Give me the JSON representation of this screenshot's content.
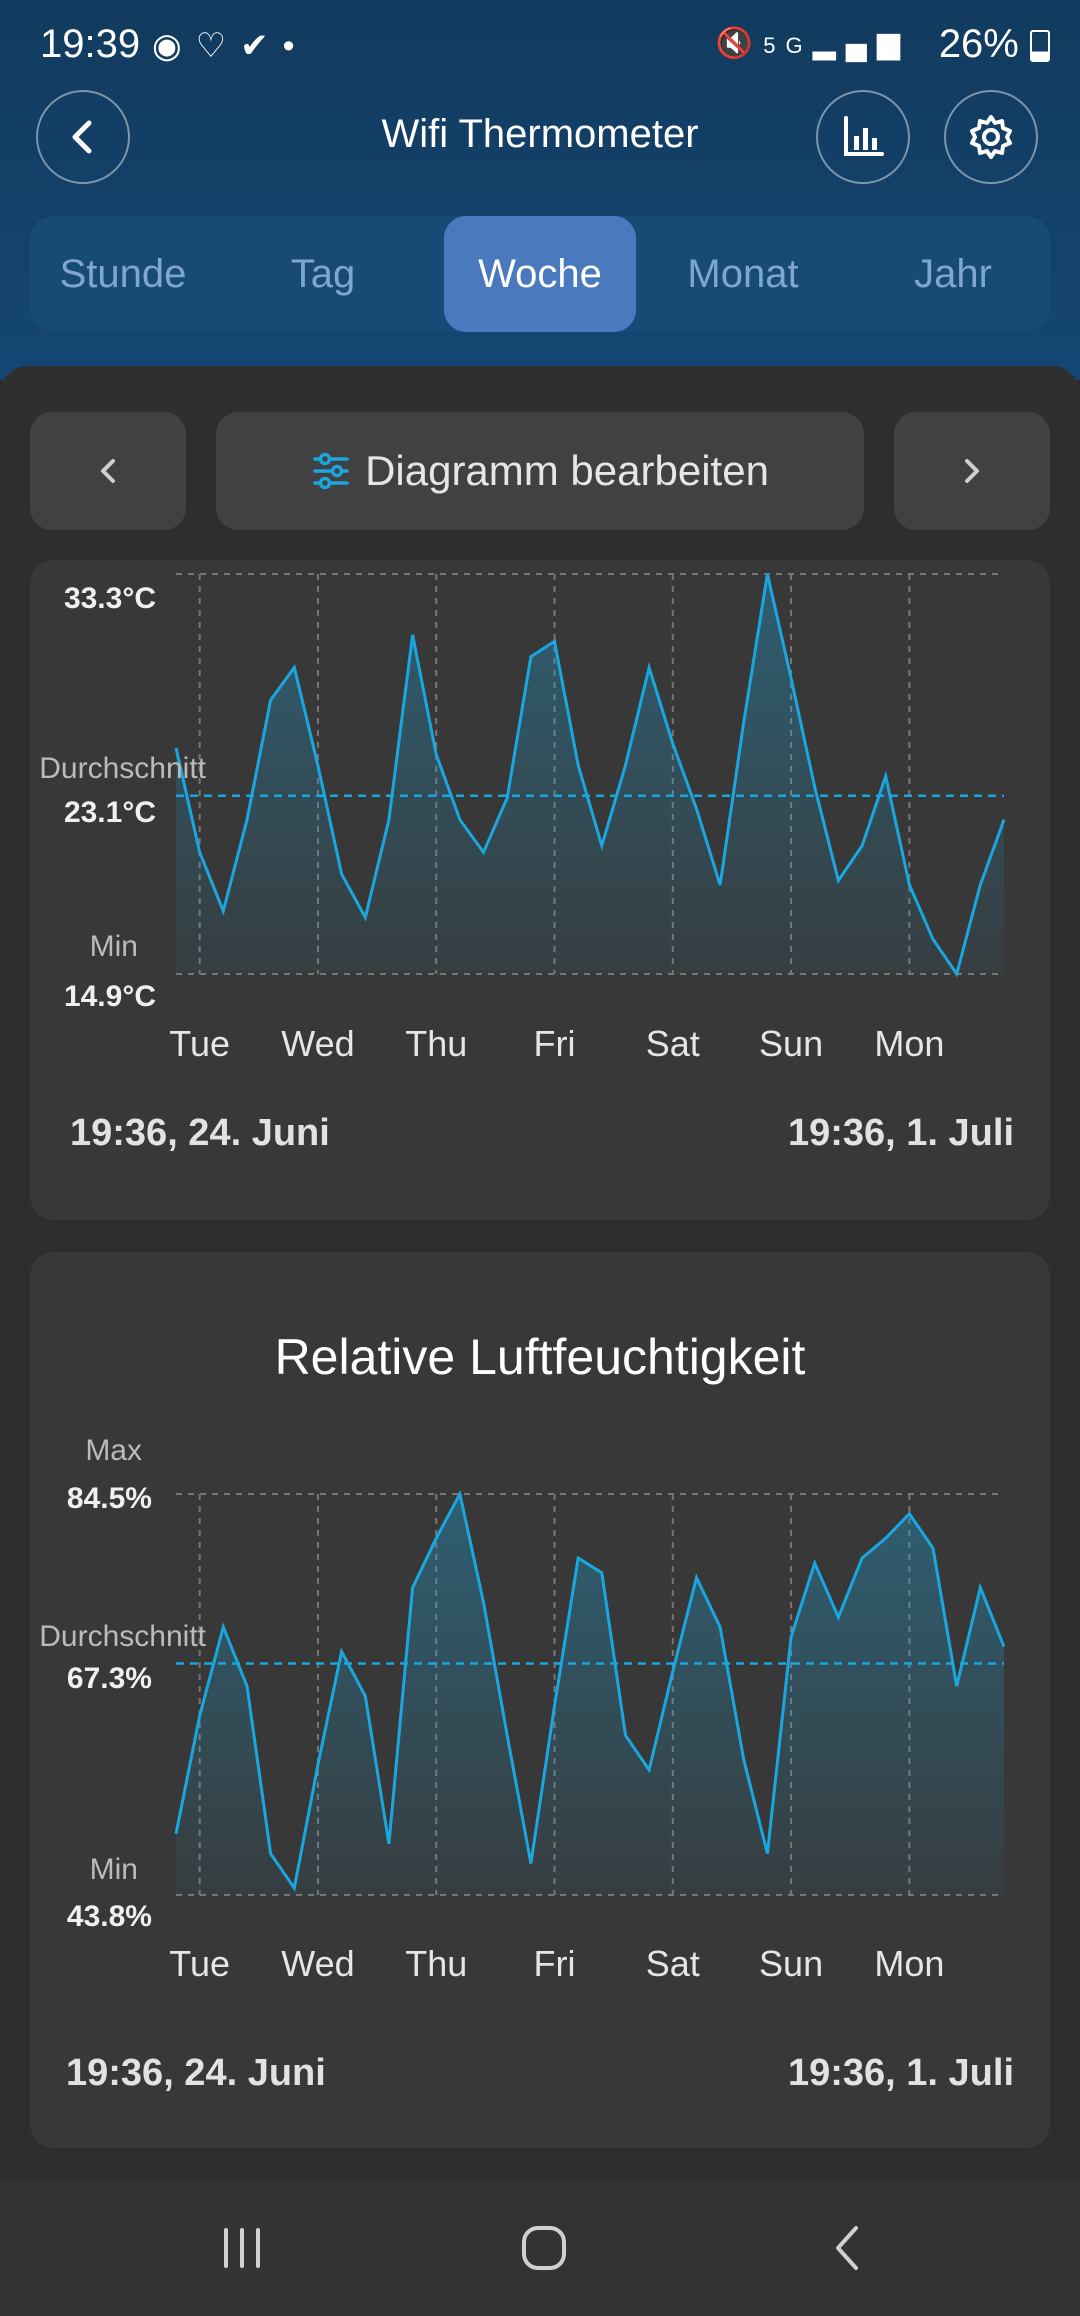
{
  "status_bar": {
    "time": "19:39",
    "left_icons": [
      "spotify-icon",
      "health-icon",
      "check-icon",
      "dot-icon"
    ],
    "right_icons": [
      "mute-icon",
      "5g-icon",
      "signal-icon"
    ],
    "battery": "26%"
  },
  "header": {
    "title": "Wifi Thermometer"
  },
  "tabs": [
    {
      "label": "Stunde",
      "active": false
    },
    {
      "label": "Tag",
      "active": false
    },
    {
      "label": "Woche",
      "active": true
    },
    {
      "label": "Monat",
      "active": false
    },
    {
      "label": "Jahr",
      "active": false
    }
  ],
  "controls": {
    "edit_label": "Diagramm bearbeiten"
  },
  "colors": {
    "accent": "#1aa7e0",
    "tab_active": "#4a79bd",
    "header": "#154673"
  },
  "temperature_chart": {
    "max_value": "33.3°C",
    "avg_label": "Durchschnitt",
    "avg_value": "23.1°C",
    "min_label": "Min",
    "min_value": "14.9°C",
    "range_start": "19:36,  24. Juni",
    "range_end": "19:36,  1. Juli"
  },
  "humidity_chart": {
    "title": "Relative Luftfeuchtigkeit",
    "max_label": "Max",
    "max_value": "84.5%",
    "avg_label": "Durchschnitt",
    "avg_value": "67.3%",
    "min_label": "Min",
    "min_value": "43.8%",
    "range_start": "19:36,  24. Juni",
    "range_end": "19:36,  1. Juli"
  },
  "chart_data": [
    {
      "type": "line",
      "series": [
        {
          "unit": "°C"
        }
      ],
      "categories": [
        "Tue",
        "Wed",
        "Thu",
        "Fri",
        "Sat",
        "Sun",
        "Mon"
      ],
      "ylim": [
        14.9,
        33.3
      ],
      "average": 23.1,
      "grid": true,
      "x": [
        0,
        0.2,
        0.4,
        0.6,
        0.8,
        1,
        1.2,
        1.4,
        1.6,
        1.8,
        2,
        2.2,
        2.4,
        2.6,
        2.8,
        3,
        3.2,
        3.4,
        3.6,
        3.8,
        4,
        4.2,
        4.4,
        4.6,
        4.8,
        5,
        5.2,
        5.4,
        5.6,
        5.8,
        6,
        6.2,
        6.4,
        6.6,
        6.8,
        7
      ],
      "y": [
        25.3,
        20.5,
        17.8,
        22.0,
        27.5,
        29.0,
        24.5,
        19.5,
        17.5,
        22.0,
        30.5,
        25.0,
        22.0,
        20.5,
        23.0,
        29.5,
        30.2,
        24.5,
        20.8,
        24.5,
        29.0,
        25.5,
        22.5,
        19.0,
        26.5,
        33.3,
        28.5,
        23.5,
        19.2,
        20.8,
        24.0,
        19.0,
        16.5,
        14.9,
        19.0,
        22.0
      ]
    },
    {
      "type": "line",
      "title": "Relative Luftfeuchtigkeit",
      "series": [
        {
          "unit": "%"
        }
      ],
      "categories": [
        "Tue",
        "Wed",
        "Thu",
        "Fri",
        "Sat",
        "Sun",
        "Mon"
      ],
      "ylim": [
        43.8,
        84.5
      ],
      "average": 67.3,
      "grid": true,
      "x": [
        0,
        0.2,
        0.4,
        0.6,
        0.8,
        1,
        1.2,
        1.4,
        1.6,
        1.8,
        2,
        2.2,
        2.4,
        2.6,
        2.8,
        3,
        3.2,
        3.4,
        3.6,
        3.8,
        4,
        4.2,
        4.4,
        4.6,
        4.8,
        5,
        5.2,
        5.4,
        5.6,
        5.8,
        6,
        6.2,
        6.4,
        6.6,
        6.8,
        7
      ],
      "y": [
        50.0,
        62.0,
        71.0,
        65.0,
        48.0,
        44.5,
        57.0,
        68.5,
        64.0,
        49.0,
        75.0,
        80.0,
        84.5,
        73.5,
        60.0,
        47.0,
        63.0,
        78.0,
        76.5,
        60.0,
        56.5,
        66.5,
        76.0,
        71.0,
        57.5,
        48.0,
        70.0,
        77.5,
        72.0,
        78.0,
        80.0,
        82.5,
        79.0,
        65.0,
        75.0,
        69.0
      ]
    }
  ]
}
